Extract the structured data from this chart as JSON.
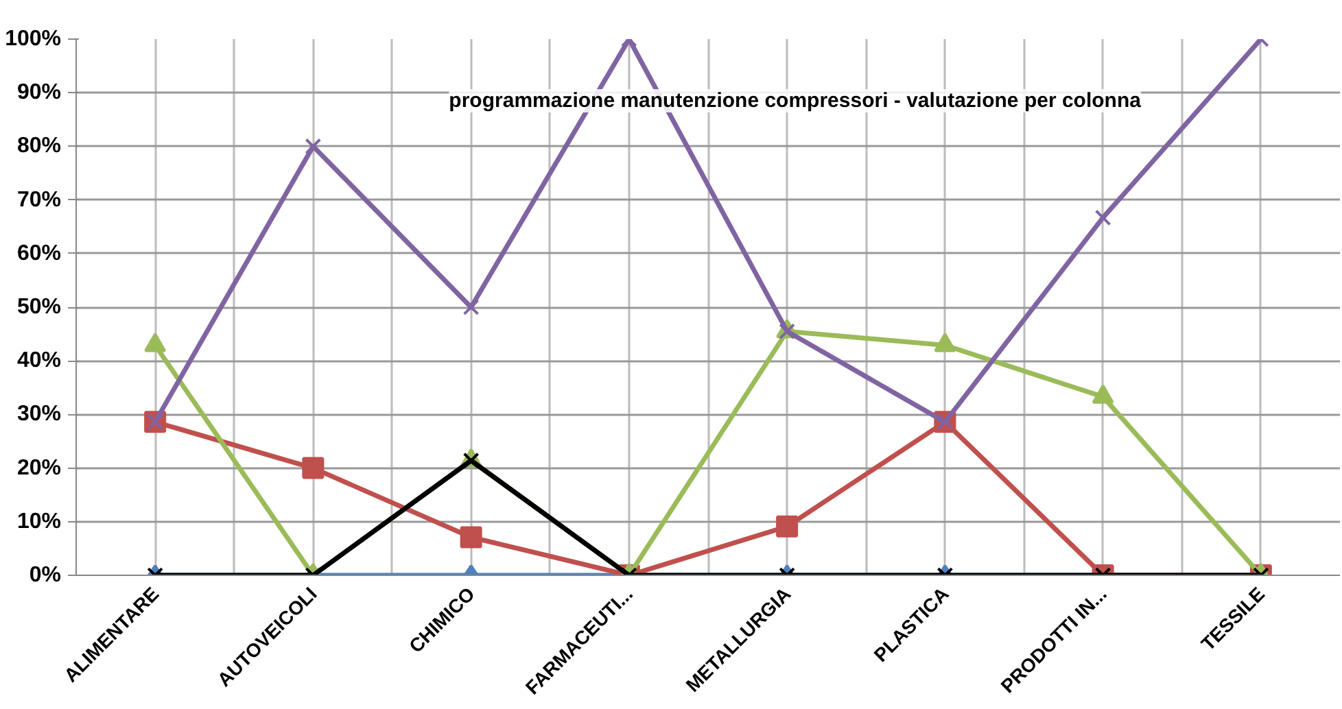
{
  "chart_data": {
    "type": "line",
    "title": "programmazione manutenzione compressori - valutazione per colonna",
    "categories": [
      "ALIMENTARE",
      "AUTOVEICOLI",
      "CHIMICO",
      "FARMACEUTI...",
      "METALLURGIA",
      "PLASTICA",
      "PRODOTTI IN...",
      "TESSILE"
    ],
    "series": [
      {
        "color": "#4f81bd",
        "marker": "diamond",
        "values": [
          0,
          0,
          0,
          0,
          0,
          0,
          0,
          0
        ]
      },
      {
        "color": "#c0504d",
        "marker": "square",
        "values": [
          28.6,
          20,
          7.1,
          0,
          9.1,
          28.6,
          0,
          0
        ]
      },
      {
        "color": "#9bbb59",
        "marker": "triangle",
        "values": [
          42.9,
          0,
          21.4,
          0,
          45.5,
          42.9,
          33.3,
          0
        ]
      },
      {
        "color": "#8064a2",
        "marker": "cross",
        "values": [
          28.6,
          80,
          50,
          100,
          45.5,
          28.6,
          66.7,
          100
        ]
      },
      {
        "color": "#000000",
        "marker": "cross",
        "values": [
          0,
          0,
          21.4,
          0,
          0,
          0,
          0,
          0
        ]
      }
    ],
    "ylim": [
      0,
      100
    ],
    "yticks": [
      {
        "value": 0,
        "label": "0%"
      },
      {
        "value": 10,
        "label": "10%"
      },
      {
        "value": 20,
        "label": "20%"
      },
      {
        "value": 30,
        "label": "30%"
      },
      {
        "value": 40,
        "label": "40%"
      },
      {
        "value": 50,
        "label": "50%"
      },
      {
        "value": 60,
        "label": "60%"
      },
      {
        "value": 70,
        "label": "70%"
      },
      {
        "value": 80,
        "label": "80%"
      },
      {
        "value": 90,
        "label": "90%"
      },
      {
        "value": 100,
        "label": "100%"
      }
    ],
    "grid": true
  }
}
